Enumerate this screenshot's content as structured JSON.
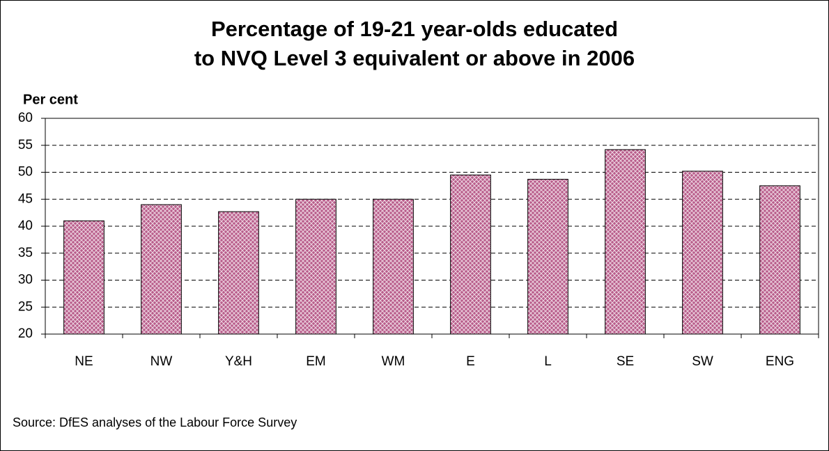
{
  "chart_data": {
    "type": "bar",
    "title": [
      "Percentage of 19-21 year-olds educated",
      "to NVQ Level 3 equivalent or above in 2006"
    ],
    "ylabel": "Per cent",
    "source": "Source: DfES analyses of the Labour Force Survey",
    "categories": [
      "NE",
      "NW",
      "Y&H",
      "EM",
      "WM",
      "E",
      "L",
      "SE",
      "SW",
      "ENG"
    ],
    "values": [
      41,
      44,
      42.7,
      45,
      45,
      49.5,
      48.7,
      54.2,
      50.2,
      47.5
    ],
    "color": "#b85c8a",
    "ylim": [
      20,
      60
    ],
    "yticks": [
      20,
      25,
      30,
      35,
      40,
      45,
      50,
      55,
      60
    ],
    "grid": true
  }
}
